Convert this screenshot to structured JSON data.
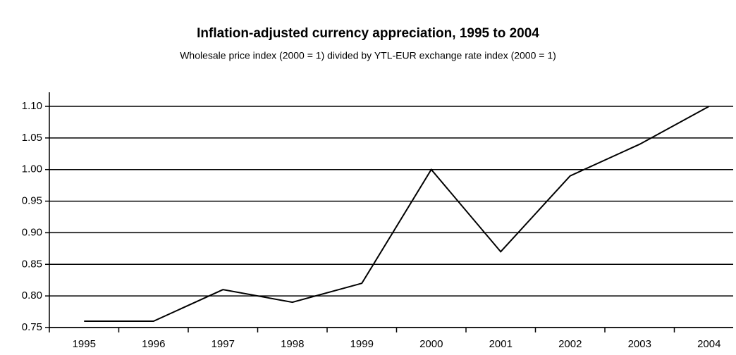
{
  "chart_data": {
    "type": "line",
    "title": "Inflation-adjusted currency appreciation, 1995 to 2004",
    "subtitle": "Wholesale price index (2000 = 1) divided by YTL-EUR exchange rate index (2000 = 1)",
    "categories": [
      "1995",
      "1996",
      "1997",
      "1998",
      "1999",
      "2000",
      "2001",
      "2002",
      "2003",
      "2004"
    ],
    "values": [
      0.76,
      0.76,
      0.81,
      0.79,
      0.82,
      1.0,
      0.87,
      0.99,
      1.04,
      1.1
    ],
    "color": "#000000",
    "ylim": [
      0.75,
      1.1
    ],
    "yticks": [
      0.75,
      {
        "value": 0.8,
        "label": "0.80"
      },
      0.85,
      {
        "value": 0.9,
        "label": "0.90"
      },
      0.95,
      {
        "value": 1.0,
        "label": "1.00"
      },
      1.05,
      {
        "value": 1.1,
        "label": "1.10"
      }
    ],
    "grid": true
  }
}
